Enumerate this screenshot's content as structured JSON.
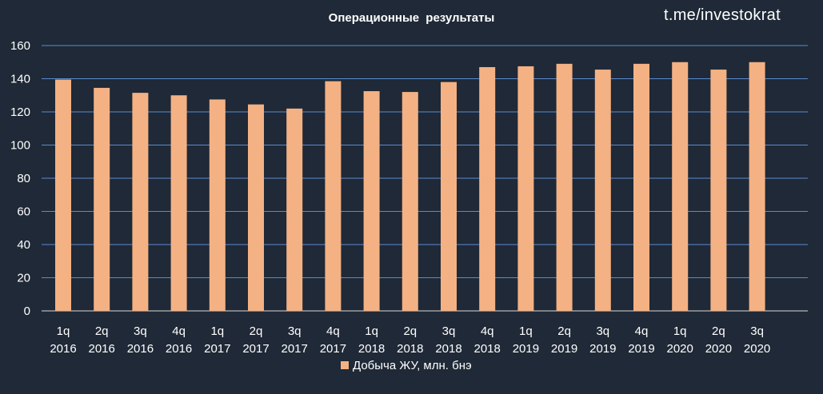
{
  "chart_data": {
    "type": "bar",
    "title": "Операционные  результаты",
    "watermark": "t.me/investokrat",
    "categories": [
      [
        "1q",
        "2016"
      ],
      [
        "2q",
        "2016"
      ],
      [
        "3q",
        "2016"
      ],
      [
        "4q",
        "2016"
      ],
      [
        "1q",
        "2017"
      ],
      [
        "2q",
        "2017"
      ],
      [
        "3q",
        "2017"
      ],
      [
        "4q",
        "2017"
      ],
      [
        "1q",
        "2018"
      ],
      [
        "2q",
        "2018"
      ],
      [
        "3q",
        "2018"
      ],
      [
        "4q",
        "2018"
      ],
      [
        "1q",
        "2019"
      ],
      [
        "2q",
        "2019"
      ],
      [
        "3q",
        "2019"
      ],
      [
        "4q",
        "2019"
      ],
      [
        "1q",
        "2020"
      ],
      [
        "2q",
        "2020"
      ],
      [
        "3q",
        "2020"
      ]
    ],
    "series": [
      {
        "name": "Добыча ЖУ, млн. бнэ",
        "color": "#f4b183",
        "values": [
          139.5,
          134.5,
          131.5,
          130,
          127.5,
          124.5,
          122,
          138.5,
          132.5,
          132,
          138,
          147,
          147.5,
          149,
          145.5,
          149,
          150,
          145.5,
          150
        ]
      }
    ],
    "ylim": [
      0,
      160
    ],
    "yticks": [
      "0",
      "20",
      "40",
      "60",
      "80",
      "100",
      "120",
      "140",
      "160"
    ],
    "grid": true,
    "legend_position": "bottom",
    "colors": {
      "background": "#1f2937",
      "gridline": "#5b8bd0",
      "text": "#ffffff"
    }
  }
}
